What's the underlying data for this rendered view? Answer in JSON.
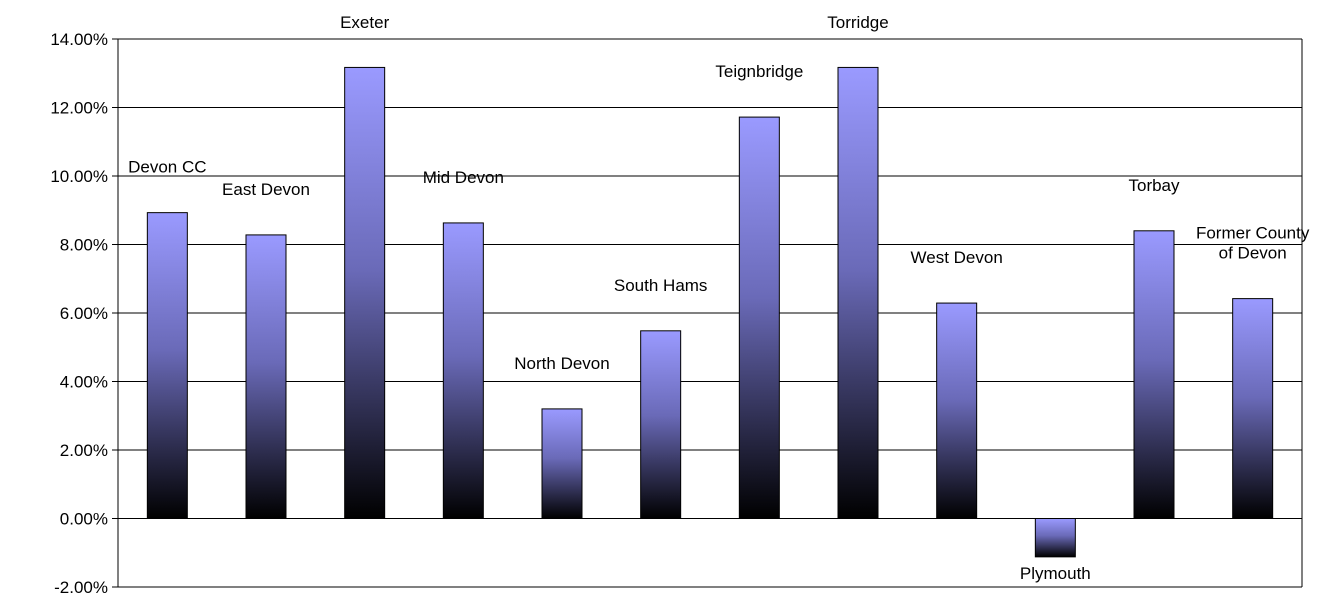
{
  "chart_data": {
    "type": "bar",
    "title": "",
    "xlabel": "",
    "ylabel": "",
    "ylim": [
      -0.02,
      0.14
    ],
    "y_tick_step": 0.02,
    "y_tick_format": "percent_2dp",
    "y_tick_labels": [
      "-2.00%",
      "0.00%",
      "2.00%",
      "4.00%",
      "6.00%",
      "8.00%",
      "10.00%",
      "12.00%",
      "14.00%"
    ],
    "grid": true,
    "legend": "none",
    "bar_gradient": {
      "top": "#9a9aff",
      "bottom": "#000000"
    },
    "categories": [
      "Devon CC",
      "East Devon",
      "Exeter",
      "Mid Devon",
      "North Devon",
      "South Hams",
      "Teignbridge",
      "Torridge",
      "West Devon",
      "Plymouth",
      "Torbay",
      "Former County of Devon"
    ],
    "values": [
      0.0893,
      0.0828,
      0.1317,
      0.0863,
      0.032,
      0.0548,
      0.1172,
      0.1317,
      0.0629,
      -0.0112,
      0.084,
      0.0642
    ],
    "labels": [
      [
        "Devon CC"
      ],
      [
        "East Devon"
      ],
      [
        "Exeter"
      ],
      [
        "Mid Devon"
      ],
      [
        "North Devon"
      ],
      [
        "South Hams"
      ],
      [
        "Teignbridge"
      ],
      [
        "Torridge"
      ],
      [
        "West Devon"
      ],
      [
        "Plymouth"
      ],
      [
        "Torbay"
      ],
      [
        "Former County",
        "of Devon"
      ]
    ]
  }
}
